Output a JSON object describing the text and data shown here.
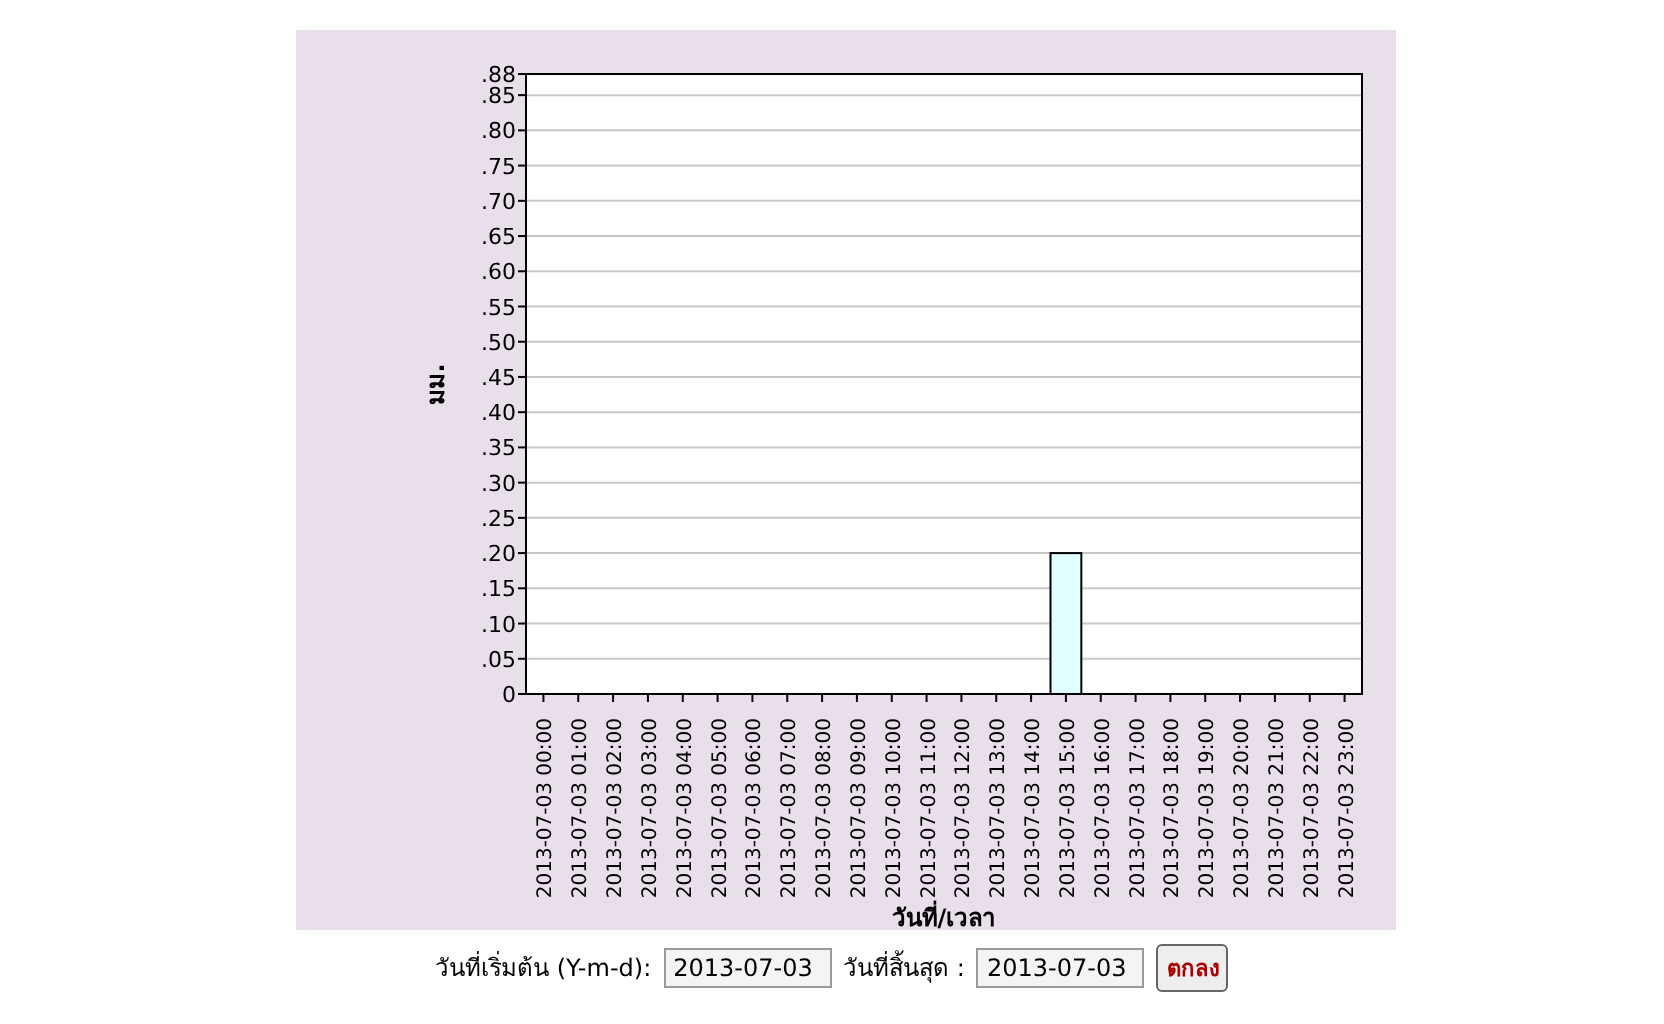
{
  "chart_data": {
    "type": "bar",
    "xlabel": "วันที่/เวลา",
    "ylabel": "มม.",
    "categories": [
      "2013-07-03 00:00",
      "2013-07-03 01:00",
      "2013-07-03 02:00",
      "2013-07-03 03:00",
      "2013-07-03 04:00",
      "2013-07-03 05:00",
      "2013-07-03 06:00",
      "2013-07-03 07:00",
      "2013-07-03 08:00",
      "2013-07-03 09:00",
      "2013-07-03 10:00",
      "2013-07-03 11:00",
      "2013-07-03 12:00",
      "2013-07-03 13:00",
      "2013-07-03 14:00",
      "2013-07-03 15:00",
      "2013-07-03 16:00",
      "2013-07-03 17:00",
      "2013-07-03 18:00",
      "2013-07-03 19:00",
      "2013-07-03 20:00",
      "2013-07-03 21:00",
      "2013-07-03 22:00",
      "2013-07-03 23:00"
    ],
    "values": [
      0,
      0,
      0,
      0,
      0,
      0,
      0,
      0,
      0,
      0,
      0,
      0,
      0,
      0,
      0,
      0.2,
      0,
      0,
      0,
      0,
      0,
      0,
      0,
      0
    ],
    "color": "#e0ffff",
    "ylim": [
      0,
      0.88
    ],
    "yticks": [
      0,
      {
        "value": 0.05,
        "label": ".05"
      },
      {
        "value": 0.1,
        "label": ".10"
      },
      {
        "value": 0.15,
        "label": ".15"
      },
      {
        "value": 0.2,
        "label": ".20"
      },
      {
        "value": 0.25,
        "label": ".25"
      },
      {
        "value": 0.3,
        "label": ".30"
      },
      {
        "value": 0.35,
        "label": ".35"
      },
      {
        "value": 0.4,
        "label": ".40"
      },
      {
        "value": 0.45,
        "label": ".45"
      },
      {
        "value": 0.5,
        "label": ".50"
      },
      {
        "value": 0.55,
        "label": ".55"
      },
      {
        "value": 0.6,
        "label": ".60"
      },
      {
        "value": 0.65,
        "label": ".65"
      },
      {
        "value": 0.7,
        "label": ".70"
      },
      {
        "value": 0.75,
        "label": ".75"
      },
      {
        "value": 0.8,
        "label": ".80"
      },
      {
        "value": 0.85,
        "label": ".85"
      },
      {
        "value": 0.88,
        "label": ".88"
      }
    ],
    "grid": "y",
    "annotations": [
      "วันที่เริ่มต้น (Y-m-d):",
      "2013-07-03",
      "วันที่สิ้นสุด :",
      "2013-07-03",
      "ตกลง"
    ]
  }
}
